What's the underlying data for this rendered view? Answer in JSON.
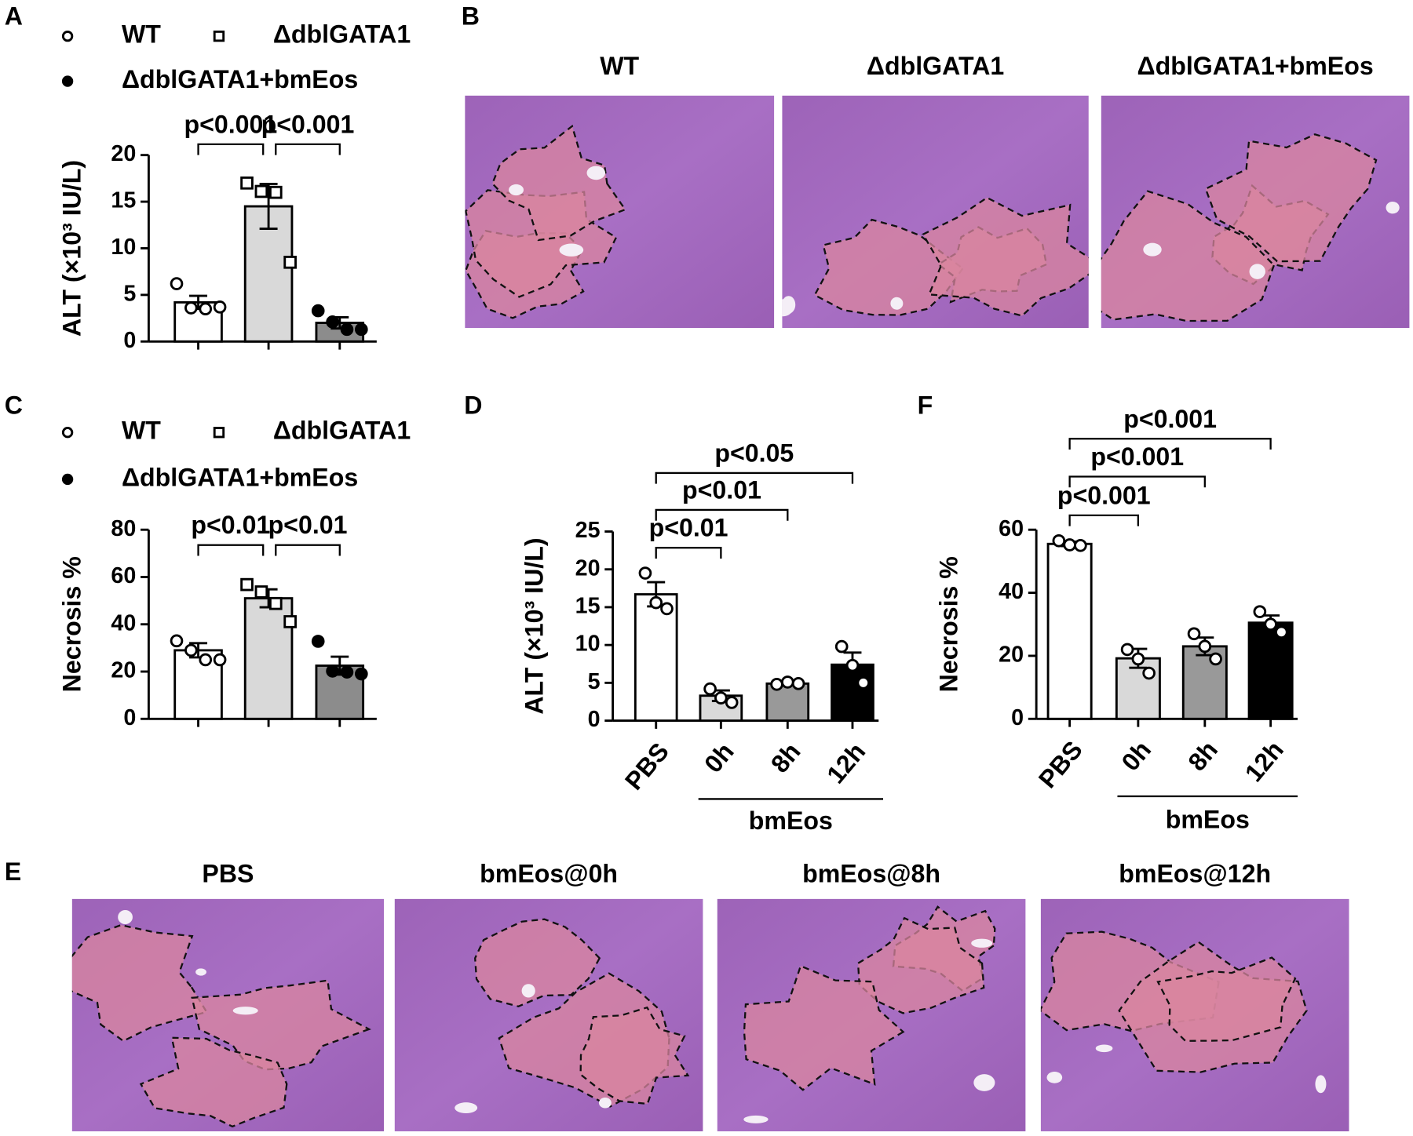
{
  "chart_data": [
    {
      "type": "bar",
      "label": "A",
      "ylabel": "ALT (×10³ IU/L)",
      "ylim": [
        0,
        20
      ],
      "yticks": [
        0,
        5,
        10,
        15,
        20
      ],
      "series": [
        {
          "name": "WT",
          "color": "#ffffff",
          "marker": "circle-open",
          "values": [
            4.2
          ],
          "errors": [
            0.7
          ],
          "points": [
            6.2,
            3.6,
            3.5,
            3.7
          ]
        },
        {
          "name": "ΔdblGATA1",
          "color": "#d9d9d9",
          "marker": "square-open",
          "values": [
            14.5
          ],
          "errors": [
            2.4
          ],
          "points": [
            17.0,
            16.1,
            16.0,
            8.5
          ]
        },
        {
          "name": "ΔdblGATA1+bmEos",
          "color": "#8c8c8c",
          "marker": "circle-filled",
          "values": [
            2.0
          ],
          "errors": [
            0.6
          ],
          "points": [
            3.3,
            2.1,
            1.3,
            1.3
          ]
        }
      ],
      "annotations": [
        "p<0.001",
        "p<0.001"
      ]
    },
    {
      "type": "bar",
      "label": "C",
      "ylabel": "Necrosis %",
      "ylim": [
        0,
        80
      ],
      "yticks": [
        0,
        20,
        40,
        60,
        80
      ],
      "series": [
        {
          "name": "WT",
          "color": "#ffffff",
          "marker": "circle-open",
          "values": [
            29
          ],
          "errors": [
            3
          ],
          "points": [
            33,
            29,
            25,
            25
          ]
        },
        {
          "name": "ΔdblGATA1",
          "color": "#d9d9d9",
          "marker": "square-open",
          "values": [
            51
          ],
          "errors": [
            3.8
          ],
          "points": [
            56.8,
            53.7,
            48.8,
            41.1
          ]
        },
        {
          "name": "ΔdblGATA1+bmEos",
          "color": "#8c8c8c",
          "marker": "circle-filled",
          "values": [
            22.5
          ],
          "errors": [
            3.8
          ],
          "points": [
            32.8,
            20.2,
            19.8,
            19.0
          ]
        }
      ],
      "annotations": [
        "p<0.01",
        "p<0.01"
      ]
    },
    {
      "type": "bar",
      "label": "D",
      "ylabel": "ALT (×10³ IU/L)",
      "ylim": [
        0,
        25
      ],
      "yticks": [
        0,
        5,
        10,
        15,
        20,
        25
      ],
      "categories": [
        "PBS",
        "0h",
        "8h",
        "12h"
      ],
      "colors": [
        "#ffffff",
        "#d9d9d9",
        "#999999",
        "#000000"
      ],
      "marker": "circle-open",
      "values": [
        16.7,
        3.3,
        4.9,
        7.4
      ],
      "errors": [
        1.6,
        0.7,
        0.2,
        1.6
      ],
      "points": [
        [
          19.5,
          15.6,
          14.8
        ],
        [
          4.2,
          3.0,
          2.4
        ],
        [
          4.8,
          5.1,
          4.9
        ],
        [
          9.8,
          7.3,
          5.0
        ]
      ],
      "group_label": "bmEos",
      "annotations": [
        "p<0.01",
        "p<0.01",
        "p<0.05"
      ]
    },
    {
      "type": "bar",
      "label": "F",
      "ylabel": "Necrosis %",
      "ylim": [
        0,
        60
      ],
      "yticks": [
        0,
        20,
        40,
        60
      ],
      "categories": [
        "PBS",
        "0h",
        "8h",
        "12h"
      ],
      "colors": [
        "#ffffff",
        "#d9d9d9",
        "#999999",
        "#000000"
      ],
      "marker": "circle-open",
      "values": [
        55.5,
        19.2,
        23,
        30.5
      ],
      "errors": [
        0.7,
        3,
        2.8,
        2.3
      ],
      "points": [
        [
          56.5,
          55.2,
          55.0
        ],
        [
          22,
          19,
          14.5
        ],
        [
          27,
          23,
          19
        ],
        [
          34,
          30,
          27.5
        ]
      ],
      "group_label": "bmEos",
      "annotations": [
        "p<0.001",
        "p<0.001",
        "p<0.001"
      ]
    }
  ],
  "images": [
    {
      "label": "B",
      "titles": [
        "WT",
        "ΔdblGATA1",
        "ΔdblGATA1+bmEos"
      ]
    },
    {
      "label": "E",
      "titles": [
        "PBS",
        "bmEos@0h",
        "bmEos@8h",
        "bmEos@12h"
      ]
    }
  ]
}
